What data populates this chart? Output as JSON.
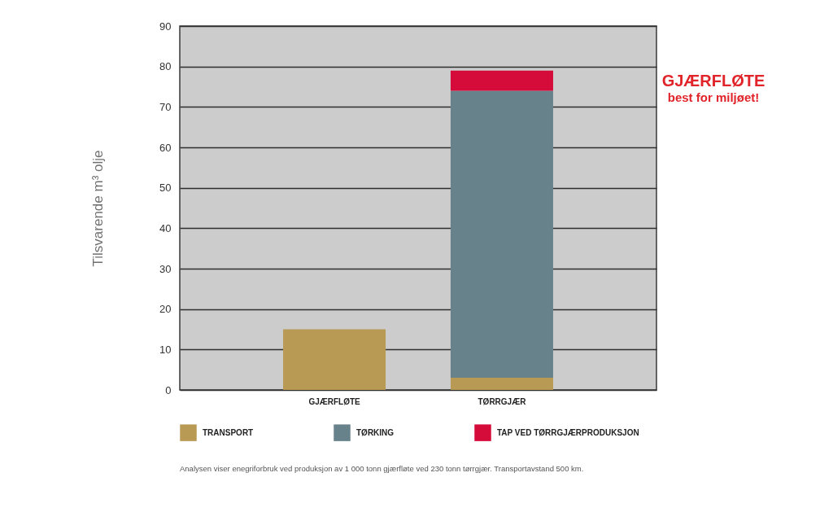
{
  "chart_data": {
    "type": "bar",
    "ylabel": "Tilsvarende m³ olje",
    "categories": [
      "GJÆRFLØTE",
      "TØRRGJÆR"
    ],
    "series": [
      {
        "name": "TRANSPORT",
        "color": "#b89a55",
        "values": [
          15,
          3
        ]
      },
      {
        "name": "TØRKING",
        "color": "#68828c",
        "values": [
          null,
          71
        ]
      },
      {
        "name": "TAP VED TØRRGJÆRPRODUKSJON",
        "color": "#d50b3a",
        "values": [
          null,
          5
        ]
      }
    ],
    "stacked": true,
    "ylim": [
      0,
      90
    ],
    "yticks": [
      0,
      10,
      20,
      30,
      40,
      50,
      60,
      70,
      80,
      90
    ],
    "grid": "y",
    "legend": "bottom",
    "annotations": [
      "GJÆRFLØTE",
      "best for miljøet!",
      "Analysen viser enegriforbruk ved produksjon av 1 000 tonn gjærfløte ved 230 tonn tørrgjær. Transportavstand 500 km."
    ]
  }
}
